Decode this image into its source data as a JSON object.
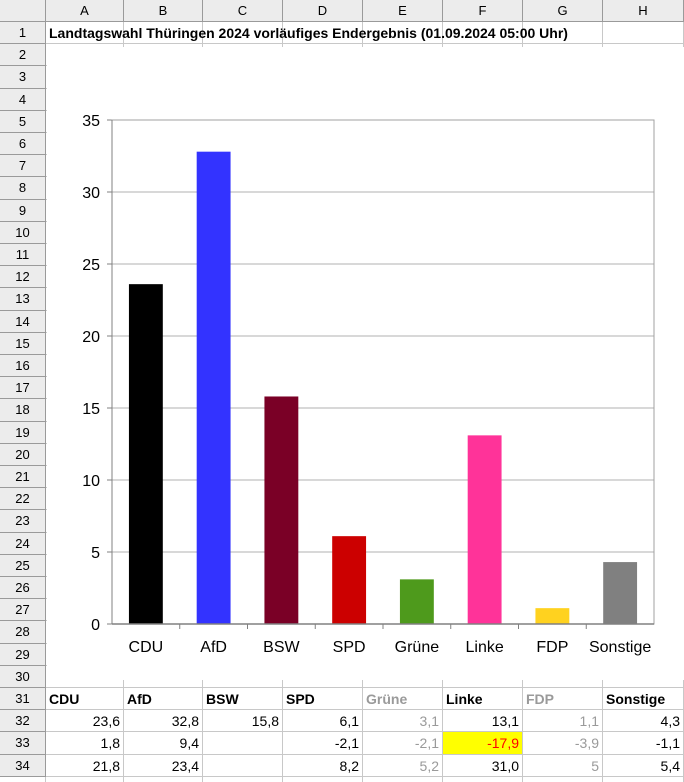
{
  "spreadsheet": {
    "columns": [
      "A",
      "B",
      "C",
      "D",
      "E",
      "F",
      "G",
      "H"
    ],
    "rows": [
      "1",
      "2",
      "3",
      "4",
      "5",
      "6",
      "7",
      "8",
      "9",
      "10",
      "11",
      "12",
      "13",
      "14",
      "15",
      "16",
      "17",
      "18",
      "19",
      "20",
      "21",
      "22",
      "23",
      "24",
      "25",
      "26",
      "27",
      "28",
      "29",
      "30",
      "31",
      "32",
      "33",
      "34"
    ],
    "title": "Landtagswahl Thüringen 2024 vorläufiges Endergebnis (01.09.2024 05:00 Uhr)",
    "table": {
      "headers": [
        "CDU",
        "AfD",
        "BSW",
        "SPD",
        "Grüne",
        "Linke",
        "FDP",
        "Sonstige"
      ],
      "header_muted": [
        false,
        false,
        false,
        false,
        true,
        false,
        true,
        false
      ],
      "rows": [
        [
          "23,6",
          "32,8",
          "15,8",
          "6,1",
          "3,1",
          "13,1",
          "1,1",
          "4,3"
        ],
        [
          "1,8",
          "9,4",
          "",
          "-2,1",
          "-2,1",
          "-17,9",
          "-3,9",
          "-1,1"
        ],
        [
          "21,8",
          "23,4",
          "",
          "8,2",
          "5,2",
          "31,0",
          "5",
          "5,4"
        ]
      ],
      "highlight": {
        "row": 1,
        "col": 5,
        "background": "#ffff00",
        "color": "#ff0000"
      }
    }
  },
  "chart_data": {
    "type": "bar",
    "categories": [
      "CDU",
      "AfD",
      "BSW",
      "SPD",
      "Grüne",
      "Linke",
      "FDP",
      "Sonstige"
    ],
    "values": [
      23.6,
      32.8,
      15.8,
      6.1,
      3.1,
      13.1,
      1.1,
      4.3
    ],
    "colors": [
      "#000000",
      "#3333ff",
      "#7a0026",
      "#cc0000",
      "#4e9a1c",
      "#ff3399",
      "#ffd21f",
      "#808080"
    ],
    "ylim": [
      0,
      35
    ],
    "yticks": [
      0,
      5,
      10,
      15,
      20,
      25,
      30,
      35
    ],
    "grid": true,
    "title": "",
    "xlabel": "",
    "ylabel": ""
  }
}
